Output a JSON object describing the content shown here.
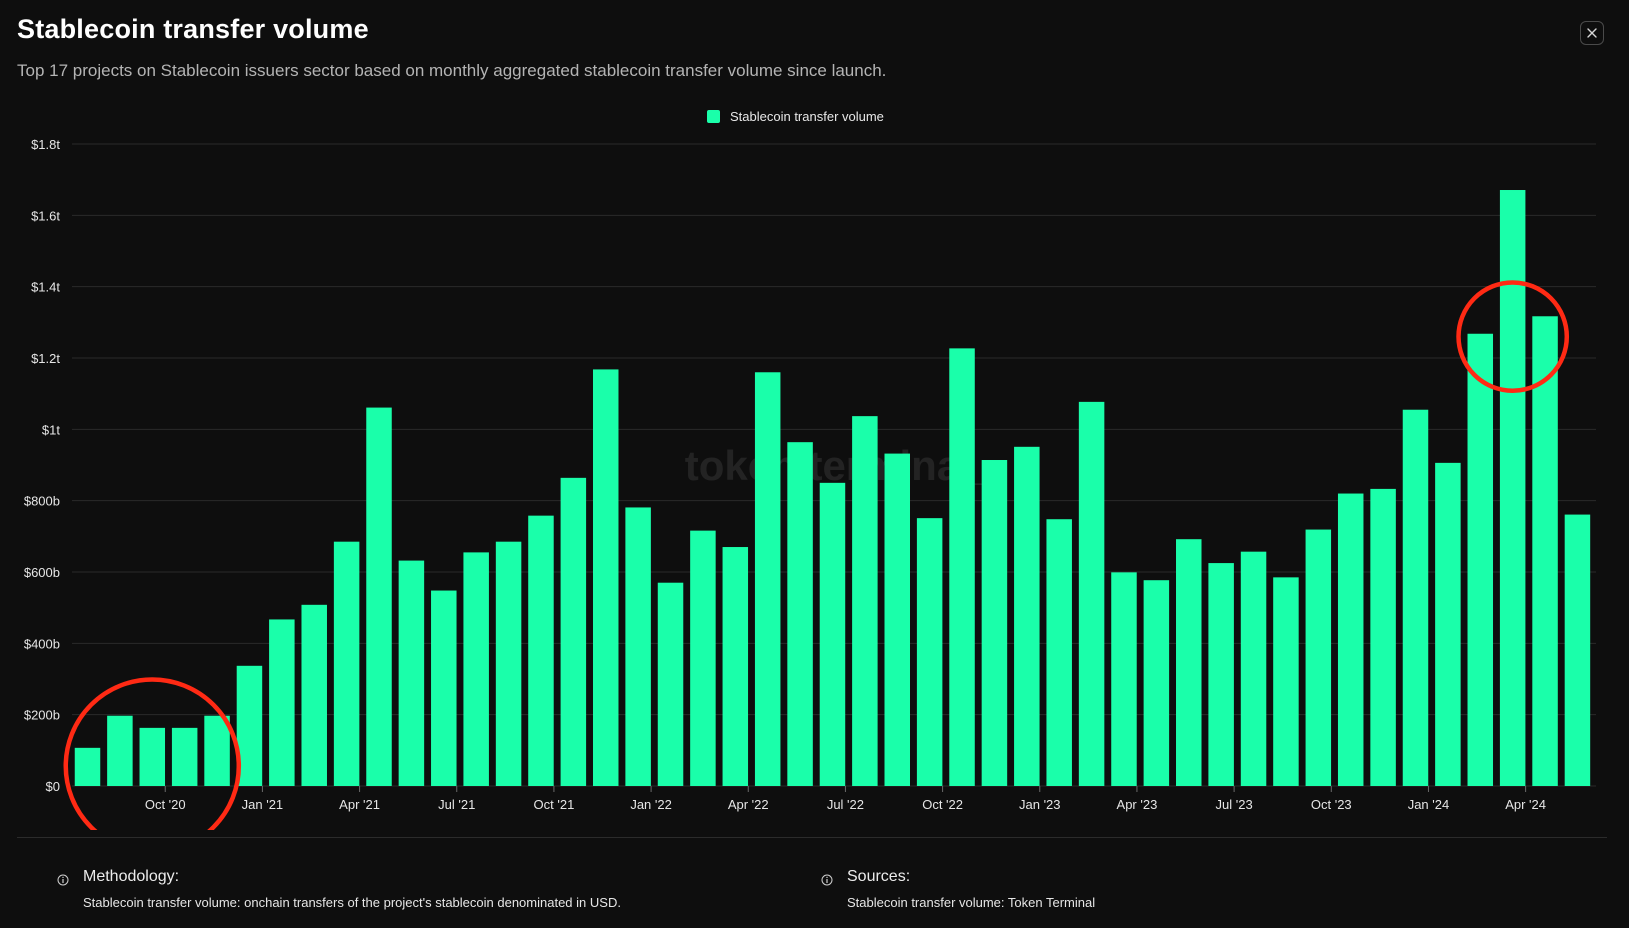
{
  "header": {
    "title": "Stablecoin transfer volume",
    "subtitle": "Top 17 projects on Stablecoin issuers sector based on monthly aggregated stablecoin transfer volume since launch.",
    "close_icon": "close-icon"
  },
  "watermark": "token terminal_",
  "colors": {
    "bar": "#1affaa",
    "background": "#0e0e0e",
    "grid": "#2a2a2a",
    "annotation": "#ff2a14"
  },
  "chart_data": {
    "type": "bar",
    "legend": [
      "Stablecoin transfer volume"
    ],
    "legend_position": "top-center",
    "grid": true,
    "ylim": [
      0,
      1800
    ],
    "y_unit": "billions USD",
    "y_ticks": [
      {
        "value": 0,
        "label": "$0"
      },
      {
        "value": 200,
        "label": "$200b"
      },
      {
        "value": 400,
        "label": "$400b"
      },
      {
        "value": 600,
        "label": "$600b"
      },
      {
        "value": 800,
        "label": "$800b"
      },
      {
        "value": 1000,
        "label": "$1t"
      },
      {
        "value": 1200,
        "label": "$1.2t"
      },
      {
        "value": 1400,
        "label": "$1.4t"
      },
      {
        "value": 1600,
        "label": "$1.6t"
      },
      {
        "value": 1800,
        "label": "$1.8t"
      }
    ],
    "x_ticks": [
      {
        "index": 2.4,
        "label": "Oct '20"
      },
      {
        "index": 5.4,
        "label": "Jan '21"
      },
      {
        "index": 8.4,
        "label": "Apr '21"
      },
      {
        "index": 11.4,
        "label": "Jul '21"
      },
      {
        "index": 14.4,
        "label": "Oct '21"
      },
      {
        "index": 17.4,
        "label": "Jan '22"
      },
      {
        "index": 20.4,
        "label": "Apr '22"
      },
      {
        "index": 23.4,
        "label": "Jul '22"
      },
      {
        "index": 26.4,
        "label": "Oct '22"
      },
      {
        "index": 29.4,
        "label": "Jan '23"
      },
      {
        "index": 32.4,
        "label": "Apr '23"
      },
      {
        "index": 35.4,
        "label": "Jul '23"
      },
      {
        "index": 38.4,
        "label": "Oct '23"
      },
      {
        "index": 41.4,
        "label": "Jan '24"
      },
      {
        "index": 44.4,
        "label": "Apr '24"
      }
    ],
    "series": [
      {
        "name": "Stablecoin transfer volume",
        "values": [
          107,
          197,
          163,
          163,
          197,
          337,
          467,
          508,
          685,
          1061,
          632,
          548,
          655,
          685,
          758,
          864,
          1168,
          781,
          570,
          716,
          670,
          1160,
          964,
          850,
          1037,
          932,
          751,
          1227,
          914,
          951,
          748,
          1077,
          599,
          577,
          692,
          625,
          657,
          585,
          719,
          820,
          833,
          1055,
          906,
          1268,
          1671,
          1317,
          761
        ]
      }
    ],
    "annotations": [
      {
        "type": "circle",
        "from_index": 0,
        "to_index": 4
      },
      {
        "type": "circle",
        "from_index": 43,
        "to_index": 45
      }
    ]
  },
  "footer": {
    "methodology": {
      "heading": "Methodology:",
      "text": "Stablecoin transfer volume: onchain transfers of the project's stablecoin denominated in USD.",
      "icon": "info-icon"
    },
    "sources": {
      "heading": "Sources:",
      "text": "Stablecoin transfer volume: Token Terminal",
      "icon": "info-icon"
    }
  }
}
